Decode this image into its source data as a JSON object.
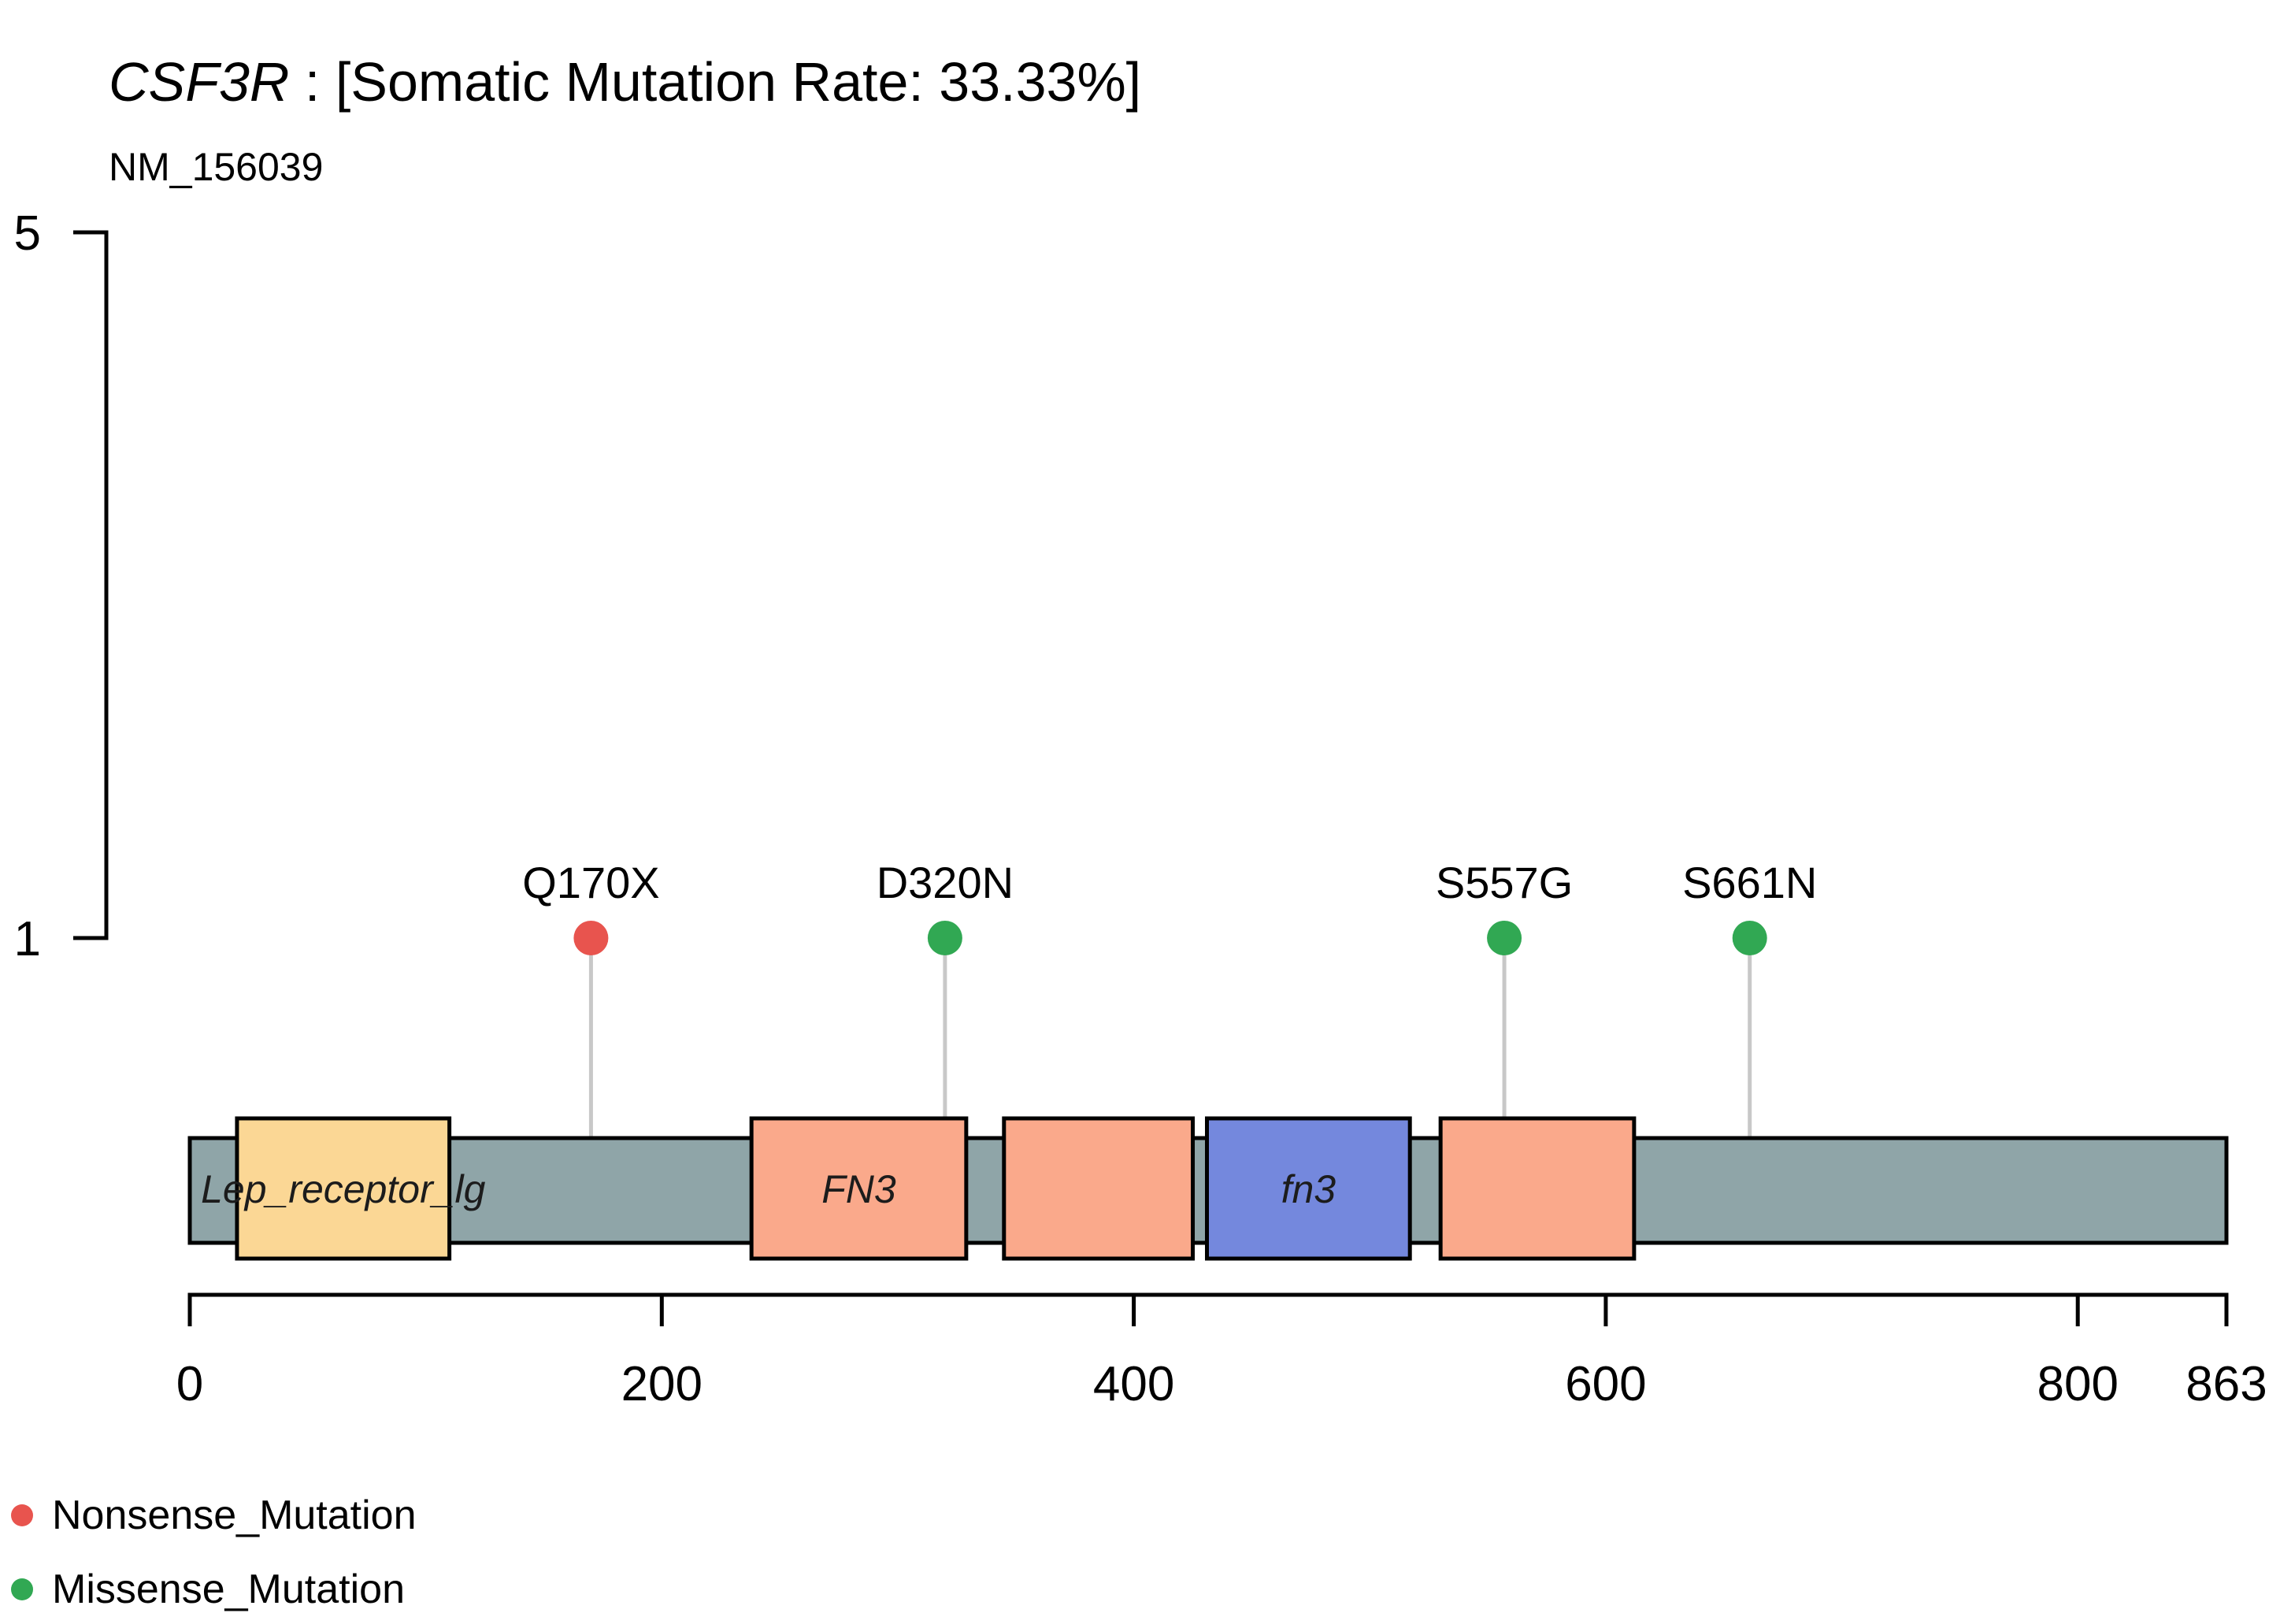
{
  "header": {
    "gene": "CSF3R",
    "title_rest": " : [Somatic Mutation Rate: 33.33%]",
    "subtitle": "NM_156039"
  },
  "chart_data": {
    "type": "lollipop",
    "title": "CSF3R : [Somatic Mutation Rate: 33.33%]",
    "gene": "CSF3R",
    "somatic_mutation_rate": "33.33%",
    "transcript": "NM_156039",
    "protein_length": 863,
    "x_axis": {
      "ticks": [
        0,
        200,
        400,
        600,
        800,
        863
      ],
      "tick_labels": [
        "0",
        "200",
        "400",
        "600",
        "800",
        "863"
      ]
    },
    "y_axis": {
      "ticks": [
        1,
        5
      ],
      "tick_labels": [
        "1",
        "5"
      ]
    },
    "mutations": [
      {
        "label": "Q170X",
        "position": 170,
        "count": 1,
        "type": "Nonsense_Mutation",
        "color": "#E8544E"
      },
      {
        "label": "D320N",
        "position": 320,
        "count": 1,
        "type": "Missense_Mutation",
        "color": "#31A853"
      },
      {
        "label": "S557G",
        "position": 557,
        "count": 1,
        "type": "Missense_Mutation",
        "color": "#31A853"
      },
      {
        "label": "S661N",
        "position": 661,
        "count": 1,
        "type": "Missense_Mutation",
        "color": "#31A853"
      }
    ],
    "domains": [
      {
        "label": "Lep_receptor_lg",
        "start": 20,
        "end": 110,
        "color": "#FBD795",
        "show_label": true
      },
      {
        "label": "FN3",
        "start": 238,
        "end": 329,
        "color": "#FAA98B",
        "show_label": true
      },
      {
        "label": "FN3",
        "start": 345,
        "end": 425,
        "color": "#FAA98B",
        "show_label": false
      },
      {
        "label": "fn3",
        "start": 431,
        "end": 517,
        "color": "#7488DD",
        "show_label": true
      },
      {
        "label": "FN3",
        "start": 530,
        "end": 612,
        "color": "#FAA98B",
        "show_label": false
      }
    ],
    "colors": {
      "backbone": "#8FA5A8",
      "stem": "#C8C8C8",
      "outline": "#000000",
      "text": "#000000",
      "domain_label_text": "#1C1C1C"
    },
    "legend": [
      {
        "label": "Nonsense_Mutation",
        "color": "#E8544E"
      },
      {
        "label": "Missense_Mutation",
        "color": "#31A853"
      }
    ],
    "grid": false,
    "legend_position": "bottom-left"
  }
}
